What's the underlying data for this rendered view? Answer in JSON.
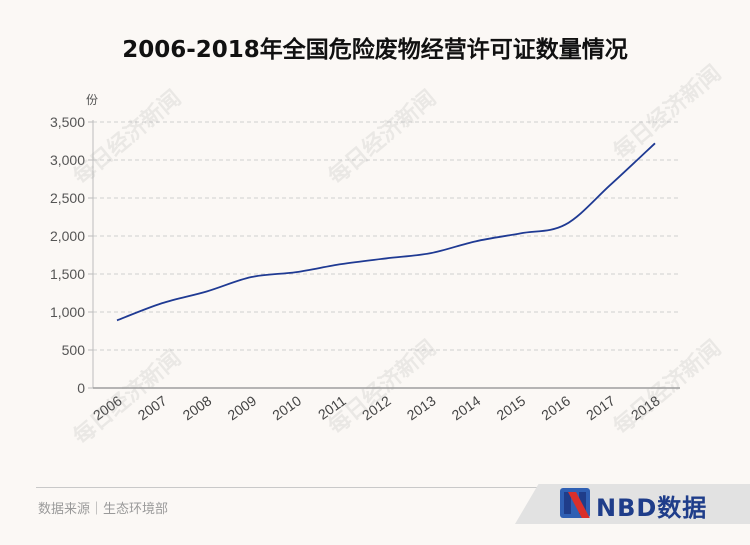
{
  "chart_data": {
    "type": "line",
    "title": "2006-2018年全国危险废物经营许可证数量情况",
    "ylabel": "份",
    "xlabel": "",
    "categories": [
      "2006",
      "2007",
      "2008",
      "2009",
      "2010",
      "2011",
      "2012",
      "2013",
      "2014",
      "2015",
      "2016",
      "2017",
      "2018"
    ],
    "series": [
      {
        "values": [
          890,
          1115,
          1270,
          1460,
          1525,
          1630,
          1705,
          1775,
          1930,
          2035,
          2150,
          2670,
          3220
        ]
      }
    ],
    "ylim": [
      0,
      3500
    ],
    "yticks": [
      0,
      500,
      1000,
      1500,
      2000,
      2500,
      3000,
      3500
    ],
    "ytick_labels": [
      "0",
      "500",
      "1,000",
      "1,500",
      "2,000",
      "2,500",
      "3,000",
      "3,500"
    ],
    "grid": "horizontal dashed",
    "line_color": "#1f3a93"
  },
  "footer": {
    "source": "数据来源｜生态环境部",
    "brand": "NBD数据"
  },
  "watermark_text": "每日经济新闻"
}
